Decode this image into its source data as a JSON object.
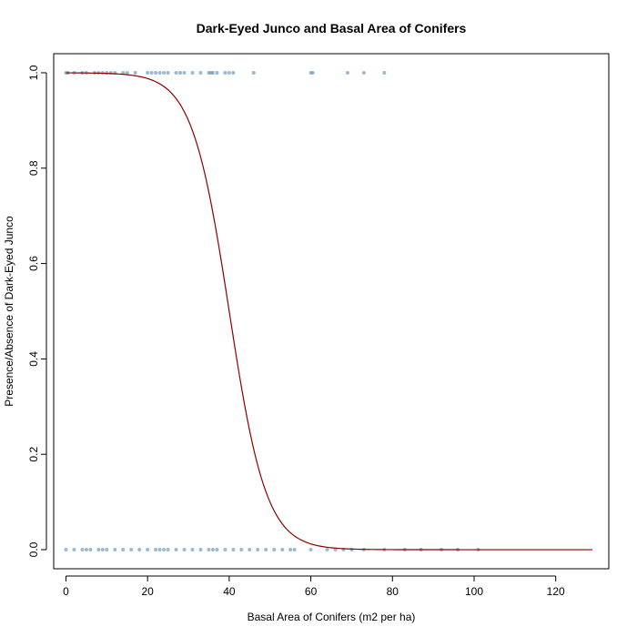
{
  "chart_data": {
    "type": "scatter",
    "title": "Dark-Eyed Junco and Basal Area of Conifers",
    "xlabel": "Basal Area of Conifers (m2 per ha)",
    "ylabel": "Presence/Absence of Dark-Eyed Junco",
    "xlim": [
      -3,
      133
    ],
    "ylim": [
      -0.04,
      1.04
    ],
    "x_ticks": [
      0,
      20,
      40,
      60,
      80,
      100,
      120
    ],
    "y_ticks": [
      0.0,
      0.2,
      0.4,
      0.6,
      0.8,
      1.0
    ],
    "x_tick_labels": [
      "0",
      "20",
      "40",
      "60",
      "80",
      "100",
      "120"
    ],
    "y_tick_labels": [
      "0.0",
      "0.2",
      "0.4",
      "0.6",
      "0.8",
      "1.0"
    ],
    "grid": false,
    "series": [
      {
        "kind": "points",
        "color": "#4682b4",
        "points": [
          [
            0,
            1
          ],
          [
            0.5,
            1
          ],
          [
            2,
            1
          ],
          [
            4,
            1
          ],
          [
            5,
            1
          ],
          [
            7,
            1
          ],
          [
            8,
            1
          ],
          [
            9,
            1
          ],
          [
            10,
            1
          ],
          [
            11,
            1
          ],
          [
            12,
            1
          ],
          [
            14,
            1
          ],
          [
            15,
            1
          ],
          [
            17,
            1
          ],
          [
            20,
            1
          ],
          [
            21,
            1
          ],
          [
            22,
            1
          ],
          [
            23,
            1
          ],
          [
            24,
            1
          ],
          [
            25,
            1
          ],
          [
            27,
            1
          ],
          [
            28,
            1
          ],
          [
            29,
            1
          ],
          [
            31,
            1
          ],
          [
            33,
            1
          ],
          [
            35,
            1
          ],
          [
            35.5,
            1
          ],
          [
            36,
            1
          ],
          [
            37,
            1
          ],
          [
            39,
            1
          ],
          [
            40,
            1
          ],
          [
            41,
            1
          ],
          [
            46,
            1
          ],
          [
            60,
            1
          ],
          [
            60.5,
            1
          ],
          [
            69,
            1
          ],
          [
            73,
            1
          ],
          [
            78,
            1
          ],
          [
            0,
            0
          ],
          [
            2,
            0
          ],
          [
            4,
            0
          ],
          [
            5,
            0
          ],
          [
            6,
            0
          ],
          [
            8,
            0
          ],
          [
            9,
            0
          ],
          [
            10,
            0
          ],
          [
            12,
            0
          ],
          [
            14,
            0
          ],
          [
            16,
            0
          ],
          [
            18,
            0
          ],
          [
            20,
            0
          ],
          [
            22,
            0
          ],
          [
            23,
            0
          ],
          [
            24,
            0
          ],
          [
            25,
            0
          ],
          [
            27,
            0
          ],
          [
            29,
            0
          ],
          [
            31,
            0
          ],
          [
            33,
            0
          ],
          [
            35,
            0
          ],
          [
            36,
            0
          ],
          [
            37,
            0
          ],
          [
            39,
            0
          ],
          [
            41,
            0
          ],
          [
            43,
            0
          ],
          [
            45,
            0
          ],
          [
            47,
            0
          ],
          [
            49,
            0
          ],
          [
            51,
            0
          ],
          [
            53,
            0
          ],
          [
            55,
            0
          ],
          [
            56,
            0
          ],
          [
            60,
            0
          ],
          [
            64,
            0
          ],
          [
            66,
            0
          ],
          [
            68,
            0
          ],
          [
            70,
            0
          ],
          [
            73,
            0
          ],
          [
            78,
            0
          ],
          [
            83,
            0
          ],
          [
            87,
            0
          ],
          [
            92,
            0
          ],
          [
            96,
            0
          ],
          [
            101,
            0
          ]
        ]
      },
      {
        "kind": "curve",
        "color": "#8b0000",
        "model": "logistic",
        "midpoint": 40,
        "slope": -0.22,
        "x_range": [
          0,
          129
        ]
      }
    ]
  }
}
